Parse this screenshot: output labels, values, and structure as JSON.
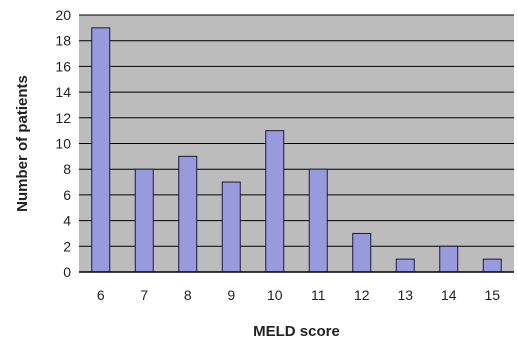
{
  "chart_data": {
    "type": "bar",
    "title": "",
    "xlabel": "MELD score",
    "ylabel": "Number of patients",
    "categories": [
      "6",
      "7",
      "8",
      "9",
      "10",
      "11",
      "12",
      "13",
      "14",
      "15"
    ],
    "values": [
      19,
      8,
      9,
      7,
      11,
      8,
      3,
      1,
      2,
      1
    ],
    "ylim": [
      0,
      20
    ],
    "yticks": [
      "0",
      "2",
      "4",
      "6",
      "8",
      "10",
      "12",
      "14",
      "16",
      "18",
      "20"
    ],
    "grid": true,
    "legend": "none",
    "colors": {
      "bar_fill": "#9999dd",
      "bar_stroke": "#1a1a3a",
      "plot_background": "#bcbcbc",
      "gridline": "#000000"
    }
  }
}
